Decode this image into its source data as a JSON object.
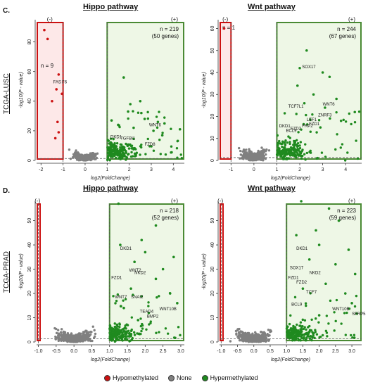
{
  "panels": {
    "c_label": "C.",
    "d_label": "D.",
    "row_c": "TCGA-LUSC",
    "row_d": "TCGA-PRAD"
  },
  "legend": {
    "hypo_label": "Hypomethylated",
    "none_label": "None",
    "hyper_label": "Hypermethylated",
    "hypo_color": "#cc1111",
    "none_color": "#808080",
    "hyper_color": "#1f8a1f"
  },
  "chart_data": [
    {
      "type": "scatter",
      "title": "Hippo pathway",
      "xlabel": "log2(FoldChange)",
      "ylabel": "-log10(P - value)",
      "xlim": [
        -2.2,
        4.5
      ],
      "ylim": [
        0,
        95
      ],
      "xticks": [
        -2,
        -1,
        0,
        1,
        2,
        3,
        4
      ],
      "yticks": [
        0,
        20,
        40,
        60,
        80
      ],
      "thresholds": [
        -1,
        1
      ],
      "neg_sign": "(-)",
      "pos_sign": "(+)",
      "neg_count": "n = 9",
      "pos_count": "n = 219",
      "pos_genes": "(50 genes)",
      "labels": [
        {
          "text": "FAS",
          "x": -1.45,
          "y": 52
        },
        {
          "text": "F6",
          "x": -1.05,
          "y": 52
        },
        {
          "text": "WNT6",
          "x": 2.9,
          "y": 23
        },
        {
          "text": "DKD1",
          "x": 1.15,
          "y": 15
        },
        {
          "text": "TGFBI1",
          "x": 1.6,
          "y": 14
        },
        {
          "text": "FZD8",
          "x": 2.7,
          "y": 10
        }
      ],
      "hypo_points": [
        [
          -1.85,
          88
        ],
        [
          -1.7,
          82
        ],
        [
          -1.2,
          58
        ],
        [
          -1.3,
          48
        ],
        [
          -1.05,
          45
        ],
        [
          -1.5,
          40
        ],
        [
          -1.25,
          26
        ],
        [
          -1.2,
          19
        ],
        [
          -1.35,
          15
        ]
      ],
      "hyper_highlights": [
        [
          1.75,
          56
        ],
        [
          2.5,
          40
        ],
        [
          2.05,
          38
        ],
        [
          1.95,
          33
        ],
        [
          2.55,
          32
        ],
        [
          2.7,
          28
        ],
        [
          3.3,
          26
        ],
        [
          3.6,
          25
        ],
        [
          1.2,
          27
        ],
        [
          4.3,
          21
        ],
        [
          3.1,
          20
        ],
        [
          3.5,
          17
        ],
        [
          2.2,
          22
        ],
        [
          1.5,
          24
        ]
      ]
    },
    {
      "type": "scatter",
      "title": "Wnt pathway",
      "xlabel": "log2(FoldChange)",
      "ylabel": "-log10(P - value)",
      "xlim": [
        -1.5,
        4.7
      ],
      "ylim": [
        0,
        64
      ],
      "xticks": [
        -1,
        0,
        1,
        2,
        3,
        4
      ],
      "yticks": [
        0,
        10,
        20,
        30,
        40,
        50,
        60
      ],
      "thresholds": [
        -1,
        1
      ],
      "neg_sign": "(-)",
      "pos_sign": "(+)",
      "neg_count": "n = 1",
      "pos_count": "n = 244",
      "pos_genes": "(67 genes)",
      "labels": [
        {
          "text": "SOX17",
          "x": 2.1,
          "y": 42
        },
        {
          "text": "WNT6",
          "x": 3.0,
          "y": 25
        },
        {
          "text": "DKD1",
          "x": 1.1,
          "y": 15
        },
        {
          "text": "FZD2",
          "x": 1.6,
          "y": 14
        },
        {
          "text": "LEF1",
          "x": 2.3,
          "y": 18
        },
        {
          "text": "TCF7L1",
          "x": 1.5,
          "y": 24
        },
        {
          "text": "BCL9",
          "x": 1.4,
          "y": 13
        },
        {
          "text": "FRP2",
          "x": 2.1,
          "y": 15
        },
        {
          "text": "ZNRF3",
          "x": 2.8,
          "y": 20
        },
        {
          "text": "FZD1",
          "x": 2.4,
          "y": 16
        }
      ],
      "hypo_points": [
        [
          -1.3,
          60
        ]
      ],
      "hyper_highlights": [
        [
          2.3,
          50
        ],
        [
          2.0,
          42
        ],
        [
          3.0,
          40
        ],
        [
          3.3,
          38
        ],
        [
          1.9,
          34
        ],
        [
          2.6,
          30
        ],
        [
          3.6,
          28
        ],
        [
          2.2,
          26
        ],
        [
          3.1,
          24
        ],
        [
          4.4,
          22
        ],
        [
          3.8,
          18
        ],
        [
          2.9,
          15
        ]
      ]
    },
    {
      "type": "scatter",
      "title": "Hippo pathway",
      "xlabel": "log2(FoldChange)",
      "ylabel": "-log10(P - value)",
      "xlim": [
        -1.05,
        3.1
      ],
      "ylim": [
        0,
        58
      ],
      "xticks": [
        -1.0,
        -0.5,
        0.0,
        0.5,
        1.0,
        1.5,
        2.0,
        2.5,
        3.0
      ],
      "yticks": [
        0,
        10,
        20,
        30,
        40,
        50
      ],
      "thresholds": [
        -1,
        1
      ],
      "neg_sign": "(-)",
      "pos_sign": "(+)",
      "neg_count": "",
      "pos_count": "n = 218",
      "pos_genes": "(52 genes)",
      "labels": [
        {
          "text": "DKD1",
          "x": 1.3,
          "y": 38
        },
        {
          "text": "WNT2",
          "x": 1.55,
          "y": 29
        },
        {
          "text": "FZD1",
          "x": 1.05,
          "y": 26
        },
        {
          "text": "NKD2",
          "x": 1.7,
          "y": 28
        },
        {
          "text": "WNT10B",
          "x": 2.4,
          "y": 13
        },
        {
          "text": "TEAD4",
          "x": 1.85,
          "y": 12
        },
        {
          "text": "SNAI2",
          "x": 1.6,
          "y": 18
        },
        {
          "text": "BMP2",
          "x": 2.05,
          "y": 10
        },
        {
          "text": "WNT7",
          "x": 1.15,
          "y": 18
        }
      ],
      "hypo_points": [],
      "hyper_highlights": [
        [
          1.25,
          57
        ],
        [
          2.3,
          48
        ],
        [
          1.9,
          42
        ],
        [
          1.3,
          40
        ],
        [
          2.0,
          37
        ],
        [
          2.8,
          35
        ],
        [
          1.7,
          33
        ],
        [
          2.5,
          30
        ],
        [
          2.3,
          26
        ],
        [
          1.6,
          22
        ],
        [
          2.7,
          20
        ],
        [
          2.9,
          16
        ],
        [
          1.4,
          14
        ],
        [
          2.1,
          12
        ],
        [
          1.8,
          9
        ]
      ]
    },
    {
      "type": "scatter",
      "title": "Wnt pathway",
      "xlabel": "log2(FoldChange)",
      "ylabel": "-log10(P - value)",
      "xlim": [
        -1.05,
        3.3
      ],
      "ylim": [
        0,
        58
      ],
      "xticks": [
        -1.0,
        -0.5,
        0.0,
        0.5,
        1.0,
        1.5,
        2.0,
        2.5,
        3.0
      ],
      "yticks": [
        0,
        10,
        20,
        30,
        40,
        50
      ],
      "thresholds": [
        -1,
        1
      ],
      "neg_sign": "(-)",
      "pos_sign": "(+)",
      "neg_count": "",
      "pos_count": "n = 223",
      "pos_genes": "(59 genes)",
      "labels": [
        {
          "text": "DKD1",
          "x": 1.3,
          "y": 38
        },
        {
          "text": "SOX17",
          "x": 1.1,
          "y": 30
        },
        {
          "text": "NKD2",
          "x": 1.7,
          "y": 28
        },
        {
          "text": "FZD1",
          "x": 1.05,
          "y": 26
        },
        {
          "text": "WNT10B",
          "x": 2.4,
          "y": 13
        },
        {
          "text": "SFRP5",
          "x": 3.0,
          "y": 11
        },
        {
          "text": "TCF7",
          "x": 1.6,
          "y": 20
        },
        {
          "text": "FZD2",
          "x": 1.3,
          "y": 24
        },
        {
          "text": "BCL9",
          "x": 1.15,
          "y": 15
        }
      ],
      "hypo_points": [],
      "hyper_highlights": [
        [
          1.45,
          58
        ],
        [
          2.3,
          55
        ],
        [
          2.6,
          50
        ],
        [
          1.9,
          46
        ],
        [
          1.3,
          44
        ],
        [
          2.0,
          40
        ],
        [
          2.9,
          38
        ],
        [
          1.7,
          34
        ],
        [
          2.5,
          32
        ],
        [
          3.1,
          28
        ],
        [
          2.2,
          24
        ],
        [
          1.5,
          22
        ],
        [
          2.8,
          20
        ],
        [
          3.0,
          16
        ],
        [
          2.0,
          11
        ]
      ]
    }
  ]
}
